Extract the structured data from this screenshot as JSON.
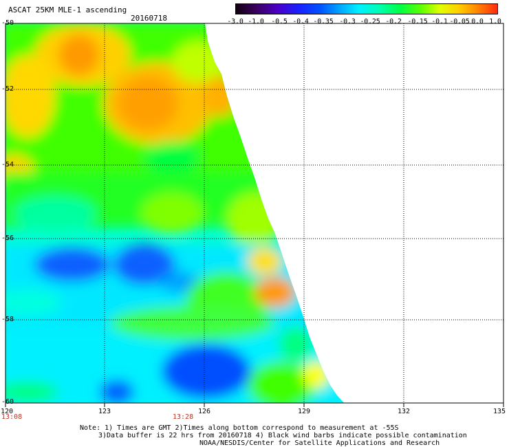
{
  "header": {
    "title": "ASCAT 25KM MLE-1 ascending",
    "date": "20160718"
  },
  "colorbar": {
    "labels": [
      "-3.0",
      "-1.0",
      "-0.5",
      "-0.4",
      "-0.35",
      "-0.3",
      "-0.25",
      "-0.2",
      "-0.15",
      "-0.1",
      "-0.05",
      "0.0",
      "1.0"
    ],
    "colors": [
      "#1a0014",
      "#3a0055",
      "#5a00b0",
      "#2a1aff",
      "#0040ff",
      "#0080ff",
      "#00c8ff",
      "#00ffee",
      "#00ff90",
      "#00ff00",
      "#a0ff00",
      "#ffff00",
      "#ffc000",
      "#ff8000",
      "#ff3010"
    ]
  },
  "axes": {
    "lat_labels": [
      "-50",
      "-52",
      "-54",
      "-56",
      "-58",
      "-60"
    ],
    "lon_labels": [
      "120",
      "123",
      "126",
      "129",
      "132",
      "135"
    ]
  },
  "time_labels": [
    "13:08",
    "13:28"
  ],
  "notes": {
    "line1": "Note: 1) Times are GMT 2)Times along bottom correspond to measurement at -55S",
    "line2": "3)Data buffer is 22 hrs from 20160718 4) Black wind barbs indicate possible contamination",
    "line3": "NOAA/NESDIS/Center for Satellite Applications and Research"
  },
  "colors": {
    "time_label": "#c0301c",
    "grid": "#000000"
  }
}
